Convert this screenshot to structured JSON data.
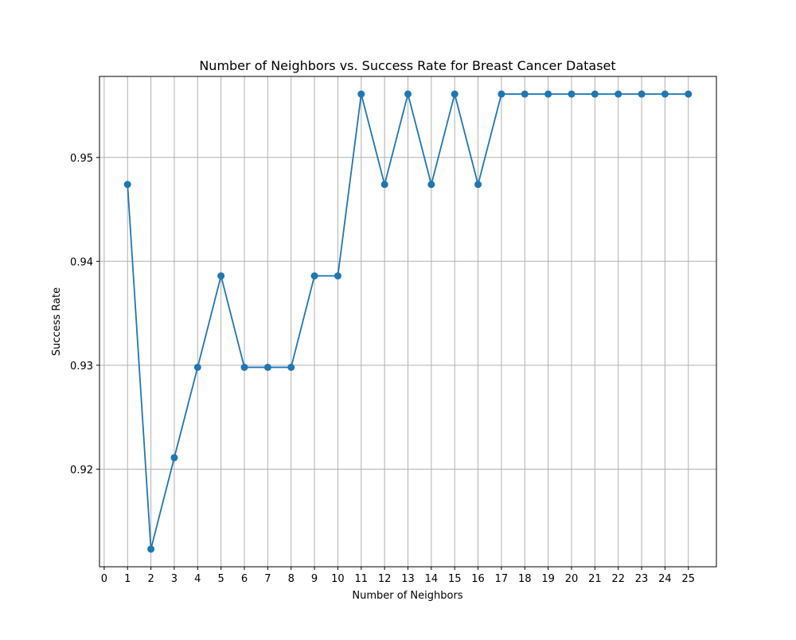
{
  "chart_data": {
    "type": "line",
    "title": "Number of Neighbors vs. Success Rate for Breast Cancer Dataset",
    "xlabel": "Number of Neighbors",
    "ylabel": "Success Rate",
    "x": [
      1,
      2,
      3,
      4,
      5,
      6,
      7,
      8,
      9,
      10,
      11,
      12,
      13,
      14,
      15,
      16,
      17,
      18,
      19,
      20,
      21,
      22,
      23,
      24,
      25
    ],
    "series": [
      {
        "values": [
          0.9474,
          0.9123,
          0.9211,
          0.9298,
          0.9386,
          0.9298,
          0.9298,
          0.9298,
          0.9386,
          0.9386,
          0.9561,
          0.9474,
          0.9561,
          0.9474,
          0.9561,
          0.9474,
          0.9561,
          0.9561,
          0.9561,
          0.9561,
          0.9561,
          0.9561,
          0.9561,
          0.9561,
          0.9561
        ],
        "color": "#1f77b4",
        "marker": "circle"
      }
    ],
    "xticks": [
      "0",
      "1",
      "2",
      "3",
      "4",
      "5",
      "6",
      "7",
      "8",
      "9",
      "10",
      "11",
      "12",
      "13",
      "14",
      "15",
      "16",
      "17",
      "18",
      "19",
      "20",
      "21",
      "22",
      "23",
      "24",
      "25"
    ],
    "yticks": [
      "0.92",
      "0.93",
      "0.94",
      "0.95"
    ],
    "xlim": [
      -0.2,
      26.2
    ],
    "ylim": [
      0.9106,
      0.9578
    ],
    "grid": true
  }
}
